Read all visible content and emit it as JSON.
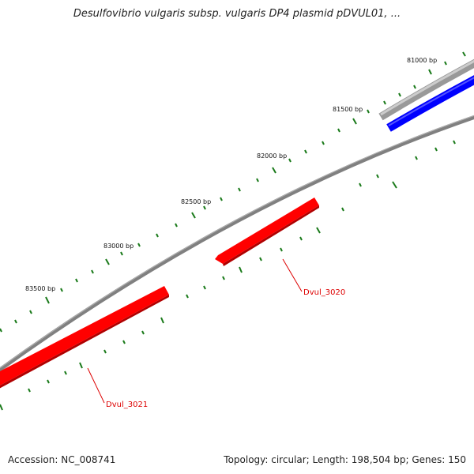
{
  "title": "Desulfovibrio vulgaris subsp. vulgaris DP4 plasmid pDVUL01, ...",
  "footer": {
    "accession": "Accession: NC_008741",
    "summary": "Topology: circular; Length: 198,504 bp; Genes: 150"
  },
  "ticks": {
    "major": [
      {
        "label": "81000 bp"
      },
      {
        "label": "81500 bp"
      },
      {
        "label": "82000 bp"
      },
      {
        "label": "82500 bp"
      },
      {
        "label": "83000 bp"
      },
      {
        "label": "83500 bp"
      }
    ]
  },
  "genes": [
    {
      "label": "Dvul_3020",
      "strand": "forward",
      "color": "#ff0000"
    },
    {
      "label": "Dvul_3021",
      "strand": "forward",
      "color": "#ff0000"
    }
  ],
  "colors": {
    "backbone": "#808080",
    "forward_gene": "#ff0000",
    "reverse_gene": "#0000ff",
    "tick": "#1a7a1a",
    "label": "#dd0000"
  }
}
